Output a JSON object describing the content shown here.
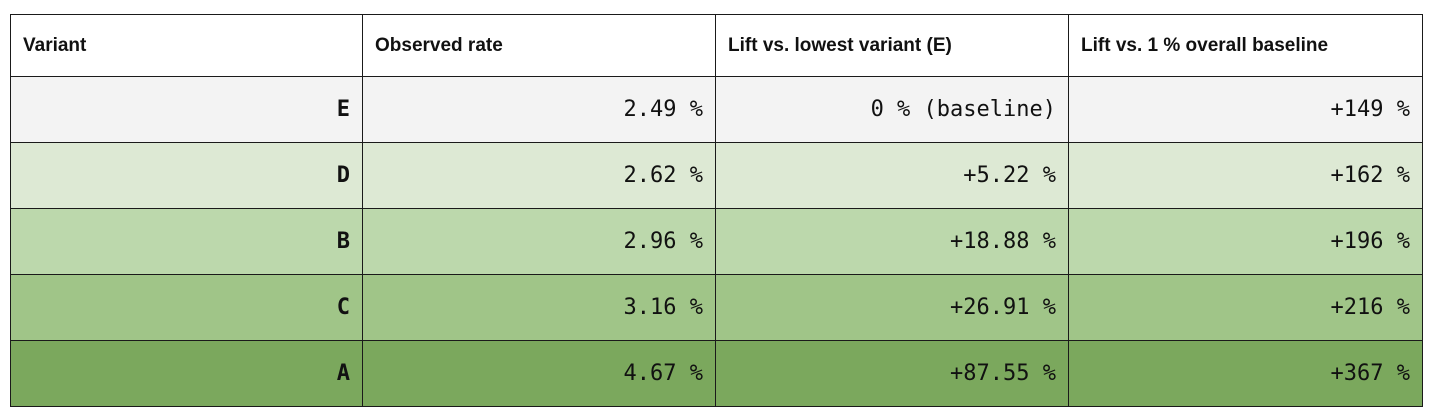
{
  "table": {
    "headers": [
      "Variant",
      "Observed rate",
      "Lift vs. lowest variant (E)",
      "Lift vs. 1 % overall baseline"
    ],
    "rows": [
      {
        "variant": "E",
        "rate": "2.49 %",
        "lift_lowest": "0 % (baseline)",
        "lift_baseline": "+149 %",
        "bg": "#f3f3f3"
      },
      {
        "variant": "D",
        "rate": "2.62 %",
        "lift_lowest": "+5.22 %",
        "lift_baseline": "+162 %",
        "bg": "#dde9d4"
      },
      {
        "variant": "B",
        "rate": "2.96 %",
        "lift_lowest": "+18.88 %",
        "lift_baseline": "+196 %",
        "bg": "#bcd8ac"
      },
      {
        "variant": "C",
        "rate": "3.16 %",
        "lift_lowest": "+26.91 %",
        "lift_baseline": "+216 %",
        "bg": "#a0c588"
      },
      {
        "variant": "A",
        "rate": "4.67 %",
        "lift_lowest": "+87.55 %",
        "lift_baseline": "+367 %",
        "bg": "#7ba85d"
      }
    ]
  }
}
